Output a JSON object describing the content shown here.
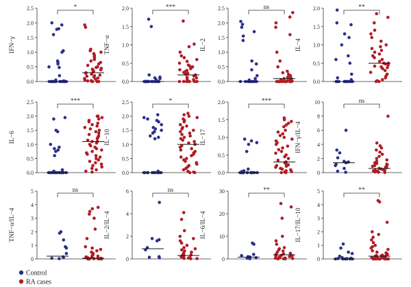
{
  "colors": {
    "control": "#2a2f8a",
    "ra": "#b01c24",
    "axis": "#333333",
    "median": "#111111"
  },
  "legend": {
    "items": [
      {
        "label": "Control",
        "color": "#2a2f8a"
      },
      {
        "label": "RA cases",
        "color": "#b01c24"
      }
    ]
  },
  "chart_data": [
    {
      "type": "scatter",
      "ylabel": "IFN−γ",
      "ylim": [
        0,
        2.5
      ],
      "yticks": [
        "0.0",
        "0.5",
        "1.0",
        "1.5",
        "2.0",
        "2.5"
      ],
      "significance": "*",
      "control": [
        2.0,
        1.93,
        1.8,
        1.78,
        1.6,
        1.05,
        1.0,
        0.7,
        0.65,
        0.6,
        0.5,
        0.48,
        0.2,
        0.05,
        0.02,
        0,
        0,
        0,
        0,
        0,
        0,
        0,
        0,
        0,
        0,
        0,
        0,
        0,
        0,
        0,
        0
      ],
      "ra": [
        1.93,
        1.85,
        1.1,
        1.05,
        1.0,
        0.95,
        0.9,
        0.85,
        0.8,
        0.75,
        0.7,
        0.65,
        0.6,
        0.55,
        0.5,
        0.48,
        0.45,
        0.42,
        0.4,
        0.38,
        0.35,
        0.33,
        0.3,
        0.28,
        0.25,
        0.22,
        0.2,
        0.18,
        0.15,
        0.12,
        0.1,
        0.08,
        0.05,
        0.03,
        0.02,
        0,
        0,
        0,
        0,
        0
      ],
      "median_control": 0.0,
      "median_ra": 0.3
    },
    {
      "type": "scatter",
      "ylabel": "TNF−α",
      "ylim": [
        0,
        2.0
      ],
      "yticks": [
        "0.0",
        "0.5",
        "1.0",
        "1.5",
        "2.0"
      ],
      "significance": "***",
      "control": [
        1.7,
        1.5,
        0.18,
        0.12,
        0.1,
        0.08,
        0.05,
        0,
        0,
        0,
        0,
        0,
        0,
        0,
        0,
        0,
        0,
        0,
        0,
        0,
        0,
        0,
        0,
        0,
        0
      ],
      "ra": [
        1.65,
        1.02,
        0.95,
        0.8,
        0.7,
        0.65,
        0.6,
        0.55,
        0.5,
        0.45,
        0.42,
        0.4,
        0.35,
        0.32,
        0.3,
        0.28,
        0.25,
        0.22,
        0.2,
        0.18,
        0.15,
        0.12,
        0.1,
        0.08,
        0.05,
        0.03,
        0,
        0,
        0,
        0,
        0,
        0,
        0,
        0,
        0
      ],
      "median_control": 0.0,
      "median_ra": 0.18
    },
    {
      "type": "scatter",
      "ylabel": "IL−2",
      "ylim": [
        0,
        2.5
      ],
      "yticks": [
        "0.0",
        "0.5",
        "1.0",
        "1.5",
        "2.0",
        "2.5"
      ],
      "significance": "ns",
      "control": [
        2.05,
        1.95,
        1.85,
        1.7,
        1.55,
        1.4,
        0.7,
        0.6,
        0.4,
        0.2,
        0.1,
        0.05,
        0,
        0,
        0,
        0,
        0,
        0,
        0,
        0,
        0,
        0,
        0,
        0,
        0
      ],
      "ra": [
        2.35,
        2.2,
        2.0,
        1.85,
        1.6,
        1.0,
        0.7,
        0.5,
        0.35,
        0.3,
        0.25,
        0.2,
        0.15,
        0.12,
        0.1,
        0.08,
        0.06,
        0.05,
        0.03,
        0.02,
        0,
        0,
        0,
        0,
        0,
        0,
        0,
        0,
        0,
        0,
        0,
        0,
        0,
        0,
        0
      ],
      "median_control": 0.0,
      "median_ra": 0.1
    },
    {
      "type": "scatter",
      "ylabel": "IL−4",
      "ylim": [
        0,
        2.0
      ],
      "yticks": [
        "0.0",
        "0.5",
        "1.0",
        "1.5",
        "2.0"
      ],
      "significance": "**",
      "control": [
        1.95,
        1.6,
        1.55,
        1.3,
        1.2,
        1.0,
        0.7,
        0.6,
        0.5,
        0.2,
        0.1,
        0.05,
        0,
        0,
        0,
        0,
        0,
        0,
        0,
        0,
        0,
        0,
        0,
        0,
        0
      ],
      "ra": [
        1.85,
        1.75,
        1.6,
        1.4,
        1.3,
        1.2,
        1.1,
        1.0,
        0.95,
        0.9,
        0.85,
        0.8,
        0.75,
        0.7,
        0.65,
        0.6,
        0.55,
        0.5,
        0.5,
        0.48,
        0.45,
        0.42,
        0.4,
        0.38,
        0.35,
        0.3,
        0.25,
        0.2,
        0.15,
        0.1,
        0.05,
        0.02,
        0.0,
        0.0
      ],
      "median_control": 0.0,
      "median_ra": 0.5
    },
    {
      "type": "scatter",
      "ylabel": "IL−6",
      "ylim": [
        0,
        2.5
      ],
      "yticks": [
        "0.0",
        "0.5",
        "1.0",
        "1.5",
        "2.0",
        "2.5"
      ],
      "significance": "***",
      "control": [
        1.95,
        1.9,
        1.5,
        1.45,
        1.0,
        0.9,
        0.85,
        0.8,
        0.75,
        0.6,
        0.1,
        0.05,
        0,
        0,
        0,
        0,
        0,
        0,
        0,
        0,
        0,
        0,
        0,
        0,
        0,
        0,
        0,
        0
      ],
      "ra": [
        2.0,
        2.0,
        1.95,
        1.9,
        1.85,
        1.8,
        1.75,
        1.7,
        1.65,
        1.6,
        1.55,
        1.5,
        1.45,
        1.4,
        1.35,
        1.3,
        1.25,
        1.2,
        1.15,
        1.1,
        1.1,
        1.05,
        1.0,
        0.95,
        0.9,
        0.85,
        0.8,
        0.75,
        0.7,
        0.65,
        0.6,
        0.55,
        0.5,
        0.45,
        0.4,
        0.35,
        0.3,
        0.25,
        0.2,
        0.15,
        0.1,
        0.05,
        0.02
      ],
      "median_control": 0.0,
      "median_ra": 1.1
    },
    {
      "type": "scatter",
      "ylabel": "IL−10",
      "ylim": [
        0,
        2.5
      ],
      "yticks": [
        "0.0",
        "0.5",
        "1.0",
        "1.5",
        "2.0",
        "2.5"
      ],
      "significance": "*",
      "control": [
        2.05,
        1.95,
        1.9,
        1.85,
        1.8,
        1.7,
        1.6,
        1.55,
        1.5,
        1.45,
        1.4,
        1.3,
        1.25,
        1.2,
        0.05,
        0,
        0,
        0,
        0,
        0,
        0,
        0,
        0,
        0,
        0,
        0,
        0
      ],
      "ra": [
        2.1,
        2.05,
        2.0,
        1.95,
        1.9,
        1.85,
        1.8,
        1.7,
        1.65,
        1.6,
        1.55,
        1.5,
        1.45,
        1.4,
        1.35,
        1.3,
        1.25,
        1.2,
        1.15,
        1.1,
        1.05,
        1.0,
        0.95,
        0.9,
        0.85,
        0.8,
        0.75,
        0.7,
        0.65,
        0.6,
        0.55,
        0.5,
        0.45,
        0.4,
        0.35,
        0.3,
        0.25,
        0.2,
        0.15,
        0.1,
        0.05,
        0.02,
        0,
        0
      ],
      "median_control": 0.0,
      "median_ra": 1.0
    },
    {
      "type": "scatter",
      "ylabel": "IL−17",
      "ylim": [
        0,
        2.0
      ],
      "yticks": [
        "0.0",
        "0.5",
        "1.0",
        "1.5",
        "2.0"
      ],
      "significance": "***",
      "control": [
        0.95,
        0.9,
        0.85,
        0.8,
        0.6,
        0.1,
        0.05,
        0.03,
        0,
        0,
        0,
        0,
        0,
        0,
        0,
        0,
        0,
        0,
        0,
        0,
        0,
        0,
        0,
        0,
        0
      ],
      "ra": [
        1.55,
        1.5,
        1.45,
        1.4,
        1.35,
        1.3,
        1.2,
        1.15,
        1.1,
        1.05,
        1.0,
        0.95,
        0.9,
        0.85,
        0.8,
        0.75,
        0.7,
        0.65,
        0.6,
        0.55,
        0.5,
        0.45,
        0.4,
        0.35,
        0.3,
        0.3,
        0.28,
        0.25,
        0.22,
        0.2,
        0.18,
        0.15,
        0.12,
        0.1,
        0.08,
        0.05,
        0.03,
        0.02,
        0,
        0
      ],
      "median_control": 0.0,
      "median_ra": 0.3
    },
    {
      "type": "scatter",
      "ylabel": "IFN−γ/IL−4",
      "ylim": [
        0,
        10
      ],
      "yticks": [
        "0",
        "2",
        "4",
        "6",
        "8",
        "10"
      ],
      "significance": "ns",
      "control": [
        6.0,
        3.2,
        2.8,
        2.1,
        1.6,
        1.5,
        1.4,
        1.2,
        1.0,
        0.6,
        0.2,
        0.05
      ],
      "ra": [
        8.0,
        4.2,
        3.8,
        3.5,
        3.2,
        2.9,
        2.6,
        2.3,
        2.0,
        1.8,
        1.6,
        1.4,
        1.3,
        1.2,
        1.1,
        1.0,
        0.9,
        0.8,
        0.7,
        0.6,
        0.5,
        0.4,
        0.35,
        0.3,
        0.25,
        0.2,
        0.15,
        0.1,
        0.05,
        0.02
      ],
      "median_control": 1.4,
      "median_ra": 0.6
    },
    {
      "type": "scatter",
      "ylabel": "TNF−α/IL−4",
      "ylim": [
        0,
        5
      ],
      "yticks": [
        "0",
        "1",
        "2",
        "3",
        "4",
        "5"
      ],
      "significance": "ns",
      "control": [
        2.0,
        1.9,
        1.4,
        0.9,
        0.8,
        0.4,
        0.15,
        0.1,
        0.05,
        0.02
      ],
      "ra": [
        3.8,
        3.7,
        3.5,
        3.3,
        3.0,
        2.2,
        1.5,
        0.9,
        0.8,
        0.7,
        0.6,
        0.5,
        0.4,
        0.3,
        0.25,
        0.2,
        0.15,
        0.12,
        0.1,
        0.08,
        0.05,
        0.03,
        0.02,
        0,
        0,
        0,
        0,
        0
      ],
      "median_control": 0.2,
      "median_ra": 0.05
    },
    {
      "type": "scatter",
      "ylabel": "IL−2/IL−4",
      "ylim": [
        0,
        6
      ],
      "yticks": [
        "0",
        "2",
        "4",
        "6"
      ],
      "significance": "ns",
      "control": [
        5.0,
        1.8,
        1.7,
        1.6,
        1.0,
        0.8,
        0.2,
        0.15,
        0.1
      ],
      "ra": [
        4.1,
        3.5,
        2.5,
        2.0,
        1.8,
        1.6,
        1.4,
        1.2,
        1.0,
        0.9,
        0.8,
        0.7,
        0.6,
        0.5,
        0.4,
        0.35,
        0.3,
        0.25,
        0.2,
        0.15,
        0.1,
        0.08,
        0.05,
        0.03,
        0.02
      ],
      "median_control": 0.9,
      "median_ra": 0.3
    },
    {
      "type": "scatter",
      "ylabel": "IL−6/IL−4",
      "ylim": [
        0,
        30
      ],
      "yticks": [
        "0",
        "10",
        "20",
        "30"
      ],
      "significance": "**",
      "control": [
        7.0,
        6.5,
        2.0,
        1.5,
        1.0,
        0.8,
        0.5,
        0.3,
        0.1
      ],
      "ra": [
        24.5,
        23.0,
        18.0,
        10.0,
        8.0,
        6.5,
        5.0,
        4.5,
        4.0,
        3.5,
        3.0,
        2.5,
        2.2,
        2.0,
        1.8,
        1.6,
        1.4,
        1.2,
        1.0,
        0.8,
        0.6,
        0.4,
        0.3,
        0.2,
        0.1,
        0.05,
        0.02
      ],
      "median_control": 0.8,
      "median_ra": 1.8
    },
    {
      "type": "scatter",
      "ylabel": "IL−17/IL−10",
      "ylim": [
        0,
        5
      ],
      "yticks": [
        "0",
        "1",
        "2",
        "3",
        "4",
        "5"
      ],
      "significance": "**",
      "control": [
        1.1,
        0.8,
        0.5,
        0.4,
        0.2,
        0.1,
        0.05,
        0.03,
        0.02,
        0,
        0,
        0,
        0,
        0,
        0
      ],
      "ra": [
        4.3,
        4.2,
        2.7,
        2.0,
        1.8,
        1.6,
        1.4,
        1.2,
        1.0,
        0.9,
        0.8,
        0.7,
        0.6,
        0.5,
        0.45,
        0.4,
        0.35,
        0.3,
        0.28,
        0.25,
        0.22,
        0.2,
        0.18,
        0.15,
        0.12,
        0.1,
        0.08,
        0.05,
        0.03,
        0.02,
        0,
        0,
        0,
        0,
        0,
        0,
        0,
        0
      ],
      "median_control": 0.0,
      "median_ra": 0.2
    }
  ]
}
